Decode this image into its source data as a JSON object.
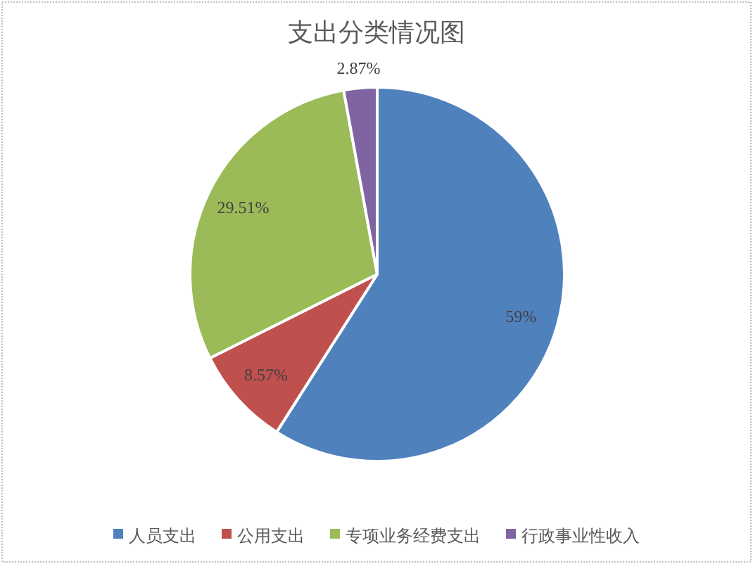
{
  "chart_data": {
    "type": "pie",
    "title": "支出分类情况图",
    "categories": [
      "人员支出",
      "公用支出",
      "专项业务经费支出",
      "行政事业性收入"
    ],
    "values": [
      59,
      8.57,
      29.51,
      2.87
    ],
    "colors": [
      "#4f81bd",
      "#c0504d",
      "#9bbb59",
      "#8064a2"
    ],
    "value_labels": [
      "59%",
      "8.57%",
      "29.51%",
      "2.87%"
    ],
    "legend": "bottom"
  }
}
